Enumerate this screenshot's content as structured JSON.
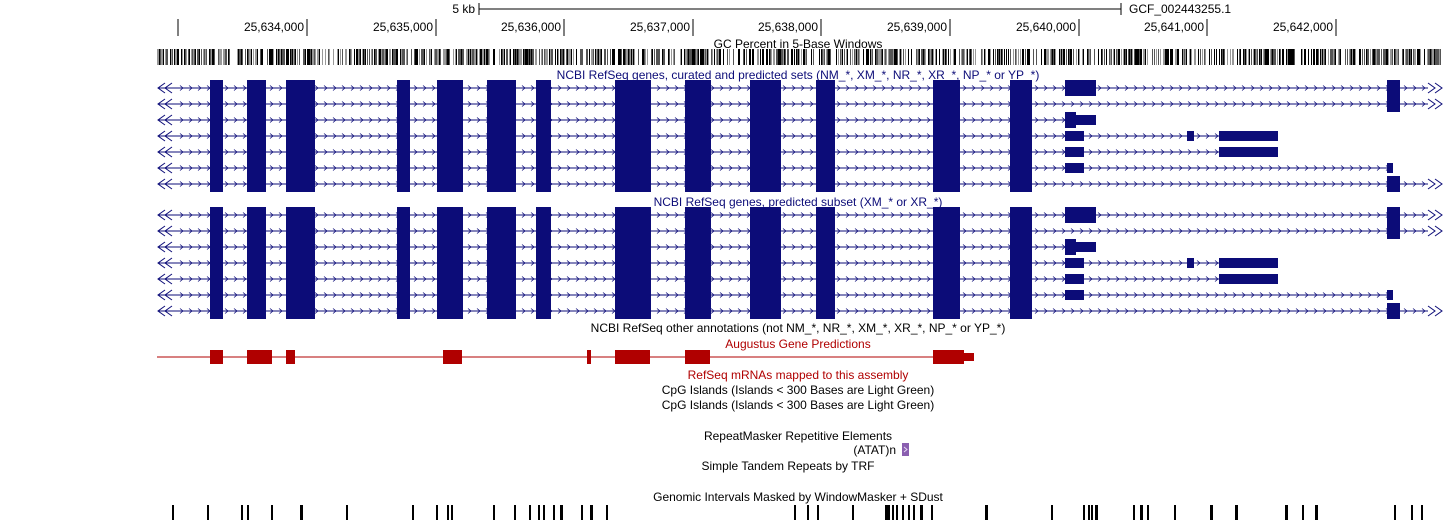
{
  "ruler": {
    "scale_label": "5 kb",
    "assembly": "GCF_002443255.1",
    "ticks": [
      "25,634,000",
      "25,635,000",
      "25,636,000",
      "25,637,000",
      "25,638,000",
      "25,639,000",
      "25,640,000",
      "25,641,000",
      "25,642,000"
    ]
  },
  "tracks": {
    "gc_percent": "GC Percent in 5-Base Windows",
    "refseq_all": "NCBI RefSeq genes, curated and predicted sets (NM_*, XM_*, NR_*, XR_*, NP_* or YP_*)",
    "refseq_predicted": "NCBI RefSeq genes, predicted subset (XM_* or XR_*)",
    "refseq_other": "NCBI RefSeq other annotations (not NM_*, NR_*, XM_*, XR_*, NP_* or YP_*)",
    "augustus": "Augustus Gene Predictions",
    "refseq_mrna": "RefSeq mRNAs mapped to this assembly",
    "cpg_1": "CpG Islands (Islands < 300 Bases are Light Green)",
    "cpg_2": "CpG Islands (Islands < 300 Bases are Light Green)",
    "repeatmasker": "RepeatMasker Repetitive Elements",
    "repeat_item": "(ATAT)n",
    "simple_repeats": "Simple Tandem Repeats by TRF",
    "windowmasker": "Genomic Intervals Masked by WindowMasker + SDust"
  },
  "colors": {
    "gene": "#0c0c78",
    "augustus": "#b00000",
    "label_blue": "#0c0c78",
    "label_red": "#b00000",
    "repeat": "#8a5fb0"
  }
}
